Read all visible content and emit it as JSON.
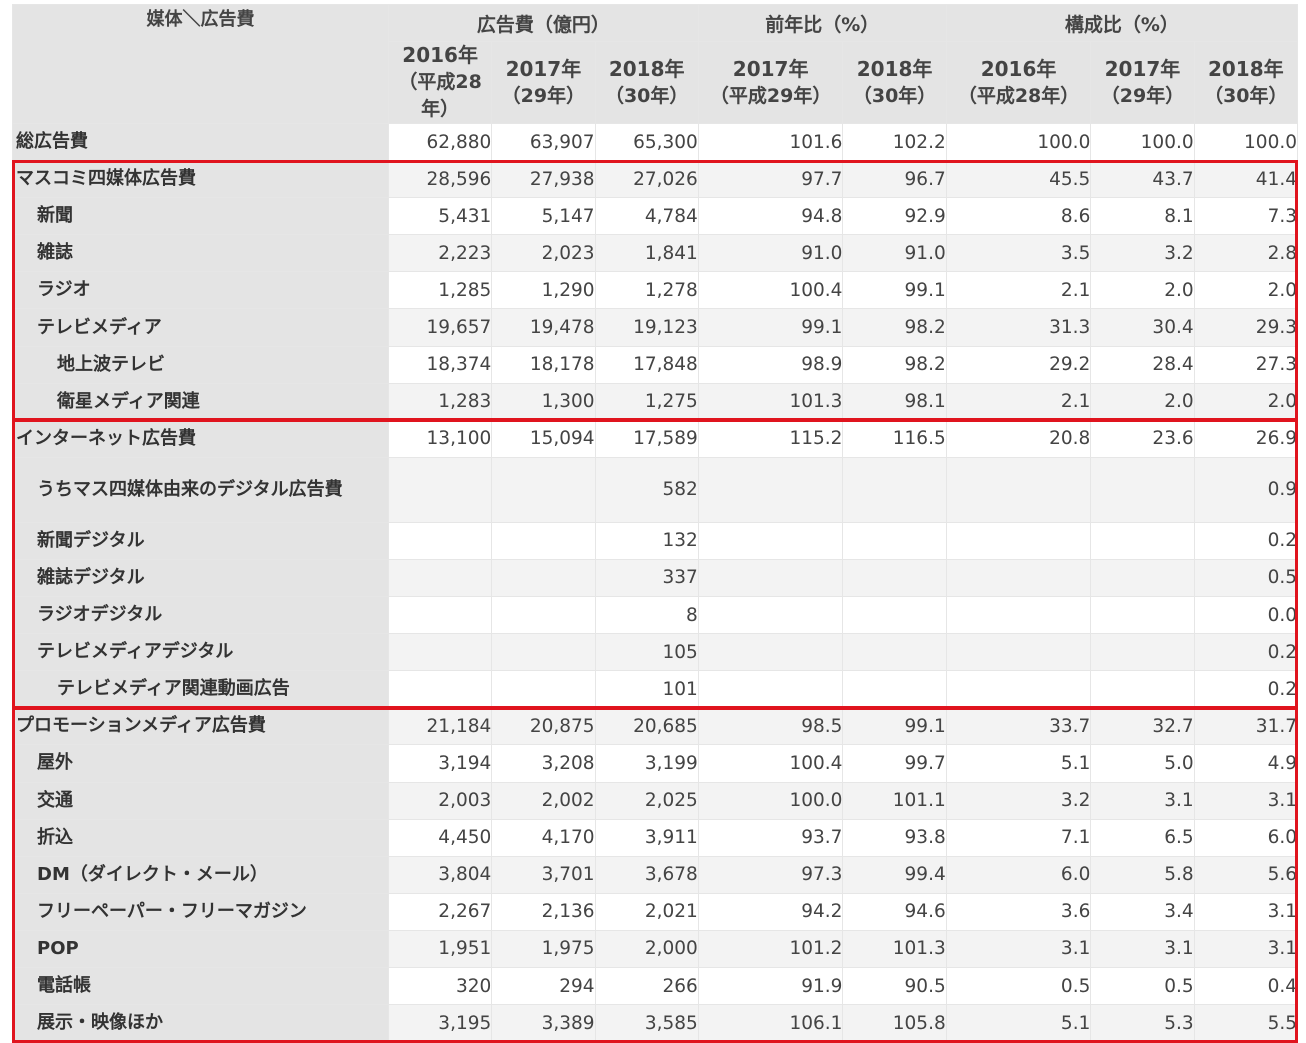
{
  "header": {
    "corner": "媒体＼広告費",
    "groups": [
      "広告費（億円）",
      "前年比（%）",
      "構成比（%）"
    ],
    "years": [
      {
        "y": "2016年",
        "s": "（平成28年）"
      },
      {
        "y": "2017年",
        "s": "（29年）"
      },
      {
        "y": "2018年",
        "s": "（30年）"
      },
      {
        "y": "2017年",
        "s": "（平成29年）"
      },
      {
        "y": "2018年",
        "s": "（30年）"
      },
      {
        "y": "2016年",
        "s": "（平成28年）"
      },
      {
        "y": "2017年",
        "s": "（29年）"
      },
      {
        "y": "2018年",
        "s": "（30年）"
      }
    ]
  },
  "rows": [
    {
      "label": "総広告費",
      "indent": 0,
      "v": [
        "62,880",
        "63,907",
        "65,300",
        "101.6",
        "102.2",
        "100.0",
        "100.0",
        "100.0"
      ]
    },
    {
      "label": "マスコミ四媒体広告費",
      "indent": 0,
      "v": [
        "28,596",
        "27,938",
        "27,026",
        "97.7",
        "96.7",
        "45.5",
        "43.7",
        "41.4"
      ]
    },
    {
      "label": "新聞",
      "indent": 1,
      "v": [
        "5,431",
        "5,147",
        "4,784",
        "94.8",
        "92.9",
        "8.6",
        "8.1",
        "7.3"
      ]
    },
    {
      "label": "雑誌",
      "indent": 1,
      "v": [
        "2,223",
        "2,023",
        "1,841",
        "91.0",
        "91.0",
        "3.5",
        "3.2",
        "2.8"
      ]
    },
    {
      "label": "ラジオ",
      "indent": 1,
      "v": [
        "1,285",
        "1,290",
        "1,278",
        "100.4",
        "99.1",
        "2.1",
        "2.0",
        "2.0"
      ]
    },
    {
      "label": "テレビメディア",
      "indent": 1,
      "v": [
        "19,657",
        "19,478",
        "19,123",
        "99.1",
        "98.2",
        "31.3",
        "30.4",
        "29.3"
      ]
    },
    {
      "label": "地上波テレビ",
      "indent": 2,
      "v": [
        "18,374",
        "18,178",
        "17,848",
        "98.9",
        "98.2",
        "29.2",
        "28.4",
        "27.3"
      ]
    },
    {
      "label": "衛星メディア関連",
      "indent": 2,
      "v": [
        "1,283",
        "1,300",
        "1,275",
        "101.3",
        "98.1",
        "2.1",
        "2.0",
        "2.0"
      ]
    },
    {
      "label": "インターネット広告費",
      "indent": 0,
      "v": [
        "13,100",
        "15,094",
        "17,589",
        "115.2",
        "116.5",
        "20.8",
        "23.6",
        "26.9"
      ]
    },
    {
      "label": "うちマス四媒体由来のデジタル広告費",
      "indent": 1,
      "tall": true,
      "v": [
        "",
        "",
        "582",
        "",
        "",
        "",
        "",
        "0.9"
      ]
    },
    {
      "label": "新聞デジタル",
      "indent": 1,
      "v": [
        "",
        "",
        "132",
        "",
        "",
        "",
        "",
        "0.2"
      ]
    },
    {
      "label": "雑誌デジタル",
      "indent": 1,
      "v": [
        "",
        "",
        "337",
        "",
        "",
        "",
        "",
        "0.5"
      ]
    },
    {
      "label": "ラジオデジタル",
      "indent": 1,
      "v": [
        "",
        "",
        "8",
        "",
        "",
        "",
        "",
        "0.0"
      ]
    },
    {
      "label": "テレビメディアデジタル",
      "indent": 1,
      "v": [
        "",
        "",
        "105",
        "",
        "",
        "",
        "",
        "0.2"
      ]
    },
    {
      "label": "テレビメディア関連動画広告",
      "indent": 2,
      "v": [
        "",
        "",
        "101",
        "",
        "",
        "",
        "",
        "0.2"
      ]
    },
    {
      "label": "プロモーションメディア広告費",
      "indent": 0,
      "v": [
        "21,184",
        "20,875",
        "20,685",
        "98.5",
        "99.1",
        "33.7",
        "32.7",
        "31.7"
      ]
    },
    {
      "label": "屋外",
      "indent": 1,
      "v": [
        "3,194",
        "3,208",
        "3,199",
        "100.4",
        "99.7",
        "5.1",
        "5.0",
        "4.9"
      ]
    },
    {
      "label": "交通",
      "indent": 1,
      "v": [
        "2,003",
        "2,002",
        "2,025",
        "100.0",
        "101.1",
        "3.2",
        "3.1",
        "3.1"
      ]
    },
    {
      "label": "折込",
      "indent": 1,
      "v": [
        "4,450",
        "4,170",
        "3,911",
        "93.7",
        "93.8",
        "7.1",
        "6.5",
        "6.0"
      ]
    },
    {
      "label": "DM（ダイレクト・メール）",
      "indent": 1,
      "v": [
        "3,804",
        "3,701",
        "3,678",
        "97.3",
        "99.4",
        "6.0",
        "5.8",
        "5.6"
      ]
    },
    {
      "label": "フリーペーパー・フリーマガジン",
      "indent": 1,
      "v": [
        "2,267",
        "2,136",
        "2,021",
        "94.2",
        "94.6",
        "3.6",
        "3.4",
        "3.1"
      ]
    },
    {
      "label": "POP",
      "indent": 1,
      "v": [
        "1,951",
        "1,975",
        "2,000",
        "101.2",
        "101.3",
        "3.1",
        "3.1",
        "3.1"
      ]
    },
    {
      "label": "電話帳",
      "indent": 1,
      "v": [
        "320",
        "294",
        "266",
        "91.9",
        "90.5",
        "0.5",
        "0.5",
        "0.4"
      ]
    },
    {
      "label": "展示・映像ほか",
      "indent": 1,
      "v": [
        "3,195",
        "3,389",
        "3,585",
        "106.1",
        "105.8",
        "5.1",
        "5.3",
        "5.5"
      ]
    }
  ],
  "highlight_color": "#e0141e"
}
